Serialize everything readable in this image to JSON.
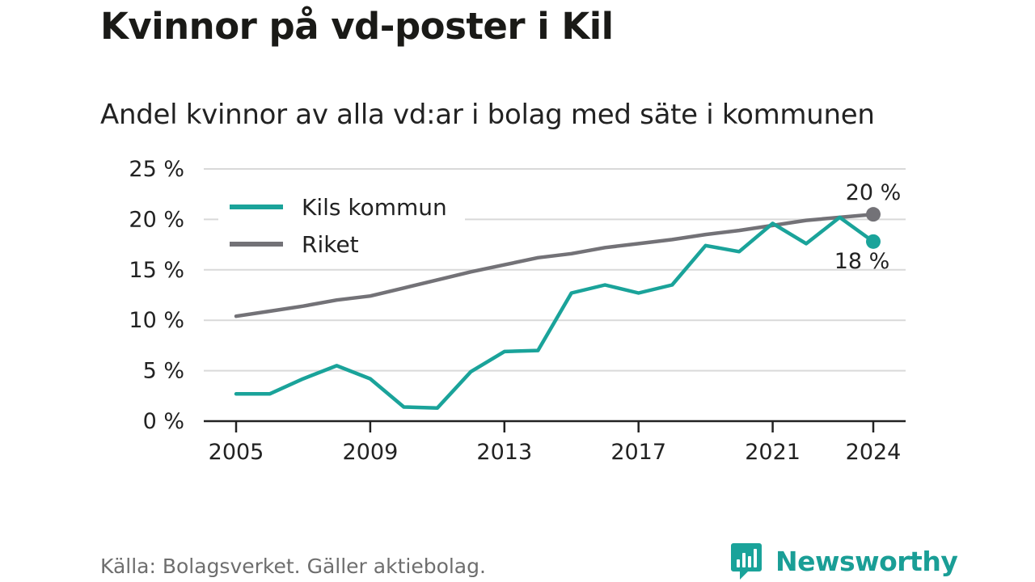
{
  "title": "Kvinnor på vd-poster i Kil",
  "subtitle": "Andel kvinnor av alla vd:ar i bolag med säte i kommunen",
  "source": "Källa: Bolagsverket. Gäller aktiebolag.",
  "brand": {
    "name": "Newsworthy",
    "icon": "newsworthy-logo-icon"
  },
  "colors": {
    "kil": "#1aa39a",
    "riket": "#737277",
    "grid": "#d9d9d9",
    "axis": "#222222"
  },
  "chart_data": {
    "type": "line",
    "title": "Kvinnor på vd-poster i Kil",
    "subtitle": "Andel kvinnor av alla vd:ar i bolag med säte i kommunen",
    "xlabel": "",
    "ylabel": "",
    "x": [
      2005,
      2006,
      2007,
      2008,
      2009,
      2010,
      2011,
      2012,
      2013,
      2014,
      2015,
      2016,
      2017,
      2018,
      2019,
      2020,
      2021,
      2022,
      2023,
      2024
    ],
    "x_ticks": [
      "2005",
      "2009",
      "2013",
      "2017",
      "2021",
      "2024"
    ],
    "y_ticks": [
      "0 %",
      "5 %",
      "10 %",
      "15 %",
      "20 %",
      "25 %"
    ],
    "ylim": [
      0,
      25
    ],
    "grid": true,
    "legend_position": "top-left",
    "series": [
      {
        "name": "Kils kommun",
        "color": "#1aa39a",
        "values": [
          2.7,
          2.7,
          4.2,
          5.5,
          4.2,
          1.4,
          1.3,
          4.9,
          6.9,
          7.0,
          12.7,
          13.5,
          12.7,
          13.5,
          17.4,
          16.8,
          19.6,
          17.6,
          20.2,
          17.8
        ],
        "end_label": "18 %"
      },
      {
        "name": "Riket",
        "color": "#737277",
        "values": [
          10.4,
          10.9,
          11.4,
          12.0,
          12.4,
          13.2,
          14.0,
          14.8,
          15.5,
          16.2,
          16.6,
          17.2,
          17.6,
          18.0,
          18.5,
          18.9,
          19.4,
          19.9,
          20.2,
          20.5
        ],
        "end_label": "20 %"
      }
    ]
  }
}
